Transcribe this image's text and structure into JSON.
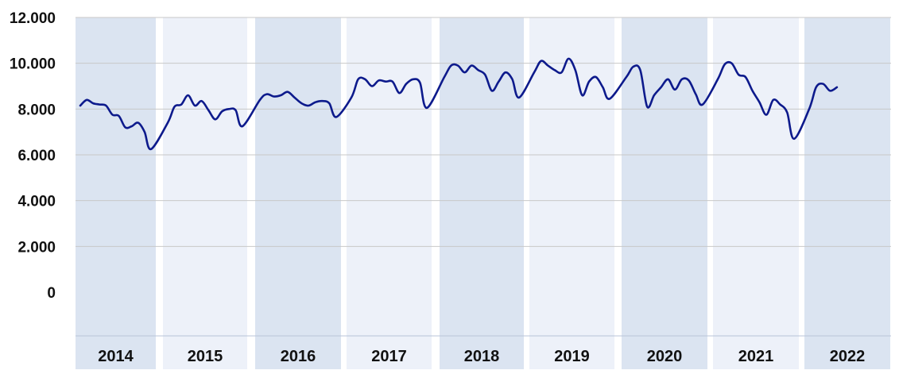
{
  "chart_data": {
    "type": "line",
    "title": "",
    "xlabel": "",
    "ylabel": "",
    "ylim": [
      0,
      12000
    ],
    "yticks": [
      "0",
      "2.000",
      "4.000",
      "6.000",
      "8.000",
      "10.000",
      "12.000"
    ],
    "ytick_values": [
      0,
      2000,
      4000,
      6000,
      8000,
      10000,
      12000
    ],
    "grid": "horizontal",
    "colors": {
      "line": "#0d1a8c",
      "band_dark": "#dbe4f1",
      "band_light": "#edf1f9",
      "grid": "#c8c8c8"
    },
    "years": [
      "2014",
      "2015",
      "2016",
      "2017",
      "2018",
      "2019",
      "2020",
      "2021",
      "2022"
    ],
    "series": [
      {
        "values": [
          [
            8150,
            8400,
            8250,
            8200,
            8150,
            7750,
            7700,
            7200,
            7250,
            7400,
            7000,
            6250
          ],
          [
            7400,
            8100,
            8200,
            8600,
            8150,
            8350,
            7950,
            7550,
            7900,
            8000,
            7950,
            7250
          ],
          [
            8400,
            8650,
            8550,
            8600,
            8750,
            8500,
            8250,
            8150,
            8300,
            8350,
            8250,
            7650
          ],
          [
            8500,
            9300,
            9300,
            9000,
            9250,
            9200,
            9200,
            8700,
            9100,
            9300,
            9150,
            8050
          ],
          [
            9400,
            9900,
            9900,
            9600,
            9900,
            9700,
            9500,
            8800,
            9200,
            9600,
            9300,
            8500
          ],
          [
            9600,
            10100,
            9900,
            9700,
            9600,
            10200,
            9700,
            8600,
            9200,
            9400,
            8950,
            8450
          ],
          [
            9400,
            9850,
            9700,
            8100,
            8600,
            8950,
            9300,
            8850,
            9300,
            9250,
            8650,
            8200
          ],
          [
            9300,
            9950,
            10000,
            9500,
            9400,
            8800,
            8300,
            7750,
            8400,
            8200,
            7850,
            6700
          ],
          [
            8000,
            8950,
            9100,
            8800,
            8950
          ]
        ]
      }
    ]
  }
}
